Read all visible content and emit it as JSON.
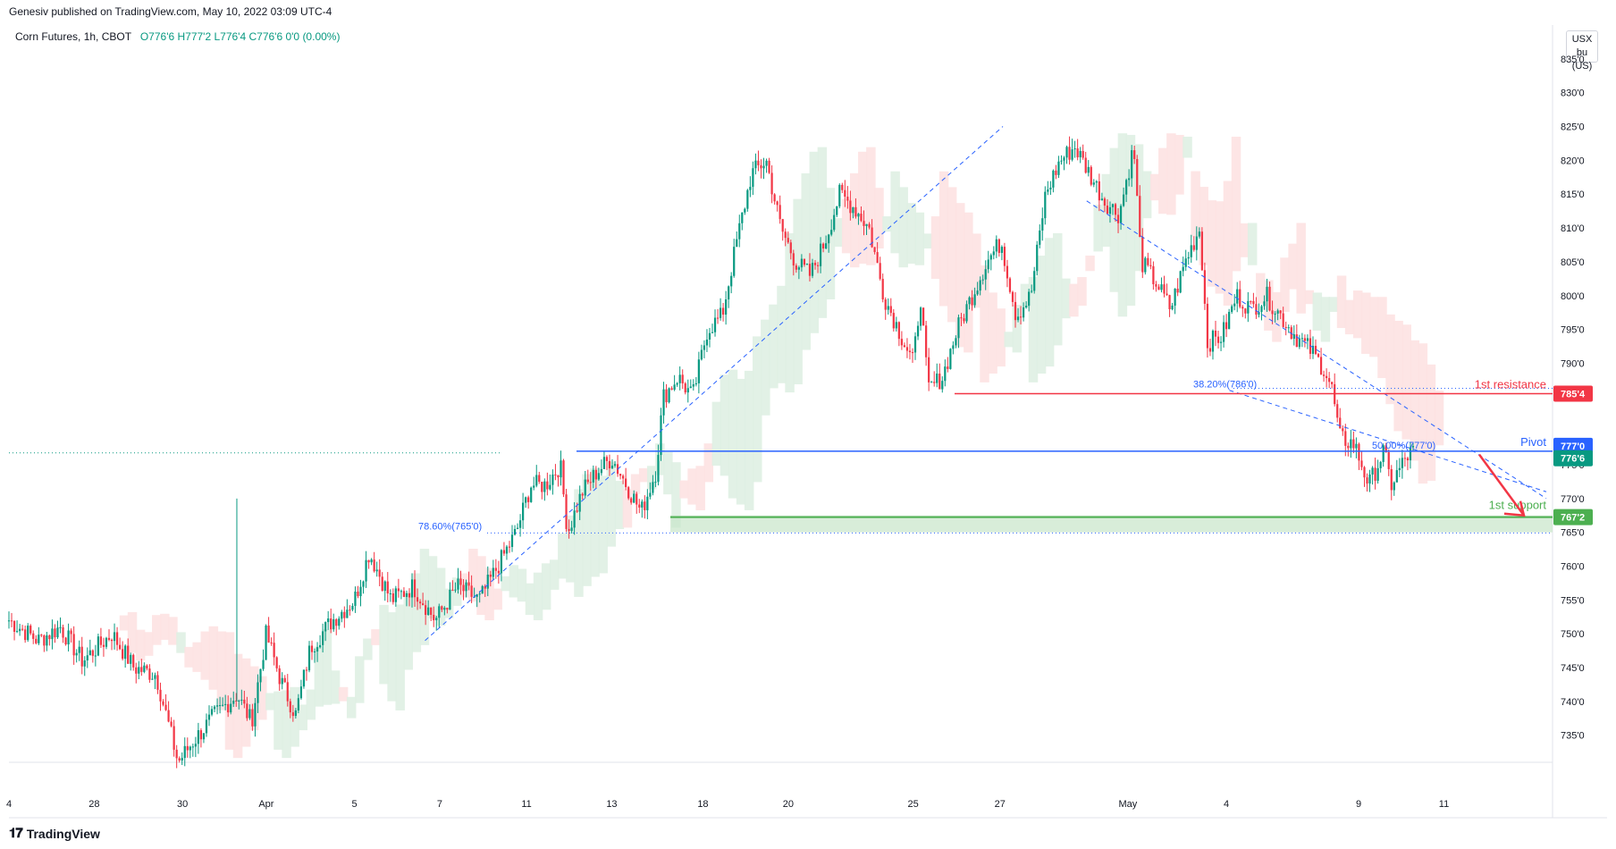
{
  "header": {
    "publisher": "Genesiv published on TradingView.com, May 10, 2022 03:09 UTC-4"
  },
  "legend": {
    "symbol": "Corn Futures, 1h, CBOT",
    "ohlc": "O776'6  H777'2  L776'4  C776'6  0'0 (0.00%)"
  },
  "price_axis": {
    "currency": "USX",
    "unit": "bu (US)"
  },
  "brand": {
    "name": "TradingView"
  },
  "colors": {
    "up": "#089981",
    "down": "#f23645",
    "cloud_green": "#dff0e3",
    "cloud_red": "#fde2e2",
    "pivot": "#2962ff",
    "resistance": "#f23645",
    "support": "#4caf50",
    "fib": "#2962ff"
  },
  "chart_data": {
    "type": "candlestick",
    "instrument": "Corn Futures",
    "timeframe": "1h",
    "exchange": "CBOT",
    "x_ticks": [
      "4",
      "28",
      "30",
      "Apr",
      "5",
      "7",
      "11",
      "13",
      "18",
      "20",
      "25",
      "27",
      "May",
      "4",
      "9",
      "11"
    ],
    "y_ticks": [
      "835'0",
      "830'0",
      "825'0",
      "820'0",
      "815'0",
      "810'0",
      "805'0",
      "800'0",
      "795'0",
      "790'0",
      "775'0",
      "770'0",
      "765'0",
      "760'0",
      "755'0",
      "750'0",
      "745'0",
      "740'0",
      "735'0"
    ],
    "ylim": [
      731,
      840
    ],
    "levels": [
      {
        "name": "1st resistance",
        "value": 785.5,
        "tag": "785'4"
      },
      {
        "name": "Pivot",
        "value": 777.0,
        "tag": "777'0"
      },
      {
        "name": "last price",
        "value": 776.75,
        "tag": "776'6"
      },
      {
        "name": "1st support",
        "value": 767.25,
        "tag": "767'2"
      }
    ],
    "fib_labels": [
      {
        "text": "38.20%(786'0)",
        "value": 786.0
      },
      {
        "text": "50.00%(777'0)",
        "value": 777.0
      },
      {
        "text": "78.60%(765'0)",
        "value": 765.0
      }
    ],
    "price_path": [
      [
        0,
        752
      ],
      [
        0.02,
        749
      ],
      [
        0.035,
        751
      ],
      [
        0.05,
        746
      ],
      [
        0.07,
        750
      ],
      [
        0.085,
        745
      ],
      [
        0.1,
        744
      ],
      [
        0.115,
        731
      ],
      [
        0.125,
        734
      ],
      [
        0.14,
        738
      ],
      [
        0.155,
        741
      ],
      [
        0.165,
        737
      ],
      [
        0.175,
        750
      ],
      [
        0.185,
        743
      ],
      [
        0.195,
        738
      ],
      [
        0.205,
        748
      ],
      [
        0.22,
        752
      ],
      [
        0.235,
        755
      ],
      [
        0.245,
        762
      ],
      [
        0.26,
        755
      ],
      [
        0.275,
        757
      ],
      [
        0.29,
        752
      ],
      [
        0.305,
        757
      ],
      [
        0.32,
        755
      ],
      [
        0.335,
        761
      ],
      [
        0.345,
        765
      ],
      [
        0.355,
        772
      ],
      [
        0.365,
        772
      ],
      [
        0.375,
        775
      ],
      [
        0.38,
        765
      ],
      [
        0.39,
        771
      ],
      [
        0.4,
        774
      ],
      [
        0.41,
        776
      ],
      [
        0.42,
        772
      ],
      [
        0.43,
        768
      ],
      [
        0.44,
        774
      ],
      [
        0.445,
        785
      ],
      [
        0.455,
        788
      ],
      [
        0.465,
        785
      ],
      [
        0.475,
        795
      ],
      [
        0.485,
        797
      ],
      [
        0.495,
        808
      ],
      [
        0.505,
        818
      ],
      [
        0.515,
        820
      ],
      [
        0.525,
        810
      ],
      [
        0.535,
        805
      ],
      [
        0.545,
        803
      ],
      [
        0.555,
        808
      ],
      [
        0.565,
        815
      ],
      [
        0.575,
        813
      ],
      [
        0.585,
        810
      ],
      [
        0.595,
        800
      ],
      [
        0.605,
        795
      ],
      [
        0.615,
        790
      ],
      [
        0.62,
        800
      ],
      [
        0.625,
        786
      ],
      [
        0.635,
        788
      ],
      [
        0.645,
        795
      ],
      [
        0.655,
        800
      ],
      [
        0.665,
        805
      ],
      [
        0.675,
        808
      ],
      [
        0.685,
        797
      ],
      [
        0.695,
        800
      ],
      [
        0.705,
        815
      ],
      [
        0.715,
        820
      ],
      [
        0.725,
        822
      ],
      [
        0.735,
        818
      ],
      [
        0.745,
        814
      ],
      [
        0.755,
        812
      ],
      [
        0.765,
        822
      ],
      [
        0.77,
        805
      ],
      [
        0.78,
        802
      ],
      [
        0.79,
        798
      ],
      [
        0.8,
        805
      ],
      [
        0.81,
        810
      ],
      [
        0.815,
        793
      ],
      [
        0.825,
        794
      ],
      [
        0.835,
        800
      ],
      [
        0.845,
        798
      ],
      [
        0.855,
        800
      ],
      [
        0.865,
        797
      ],
      [
        0.875,
        794
      ],
      [
        0.885,
        792
      ],
      [
        0.895,
        789
      ],
      [
        0.9,
        786
      ],
      [
        0.905,
        779
      ],
      [
        0.915,
        778
      ],
      [
        0.925,
        772
      ],
      [
        0.935,
        777
      ],
      [
        0.94,
        772
      ],
      [
        0.95,
        776
      ],
      [
        0.955,
        777
      ]
    ]
  }
}
